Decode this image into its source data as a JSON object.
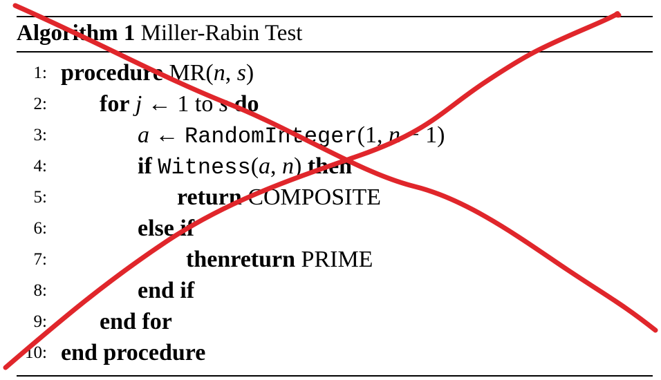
{
  "caption": {
    "label": "Algorithm 1",
    "title": "Miller-Rabin Test"
  },
  "lines": [
    {
      "num": "1:",
      "parts": [
        [
          "kw",
          "procedure"
        ],
        [
          "t",
          " MR("
        ],
        [
          "m",
          "n"
        ],
        [
          "t",
          ", "
        ],
        [
          "m",
          "s"
        ],
        [
          "t",
          ")"
        ]
      ]
    },
    {
      "num": "2:",
      "parts": [
        [
          "kw",
          "for"
        ],
        [
          "t",
          " "
        ],
        [
          "m",
          "j"
        ],
        [
          "t",
          " ← 1 to "
        ],
        [
          "m",
          "s"
        ],
        [
          "t",
          " "
        ],
        [
          "kw",
          "do"
        ]
      ]
    },
    {
      "num": "3:",
      "parts": [
        [
          "m",
          "a"
        ],
        [
          "t",
          " ← "
        ],
        [
          "tt",
          "RandomInteger"
        ],
        [
          "t",
          "(1, "
        ],
        [
          "m",
          "n"
        ],
        [
          "t",
          " − 1)"
        ]
      ]
    },
    {
      "num": "4:",
      "parts": [
        [
          "kw",
          "if"
        ],
        [
          "t",
          " "
        ],
        [
          "tt",
          "Witness"
        ],
        [
          "t",
          "("
        ],
        [
          "m",
          "a"
        ],
        [
          "t",
          ", "
        ],
        [
          "m",
          "n"
        ],
        [
          "t",
          ") "
        ],
        [
          "kw",
          "then"
        ]
      ]
    },
    {
      "num": "5:",
      "parts": [
        [
          "kw",
          "return"
        ],
        [
          "t",
          " COMPOSITE"
        ]
      ]
    },
    {
      "num": "6:",
      "parts": [
        [
          "kw",
          "else if"
        ]
      ]
    },
    {
      "num": "7:",
      "parts": [
        [
          "kw",
          "thenreturn"
        ],
        [
          "t",
          " PRIME"
        ]
      ]
    },
    {
      "num": "8:",
      "parts": [
        [
          "kw",
          "end if"
        ]
      ]
    },
    {
      "num": "9:",
      "parts": [
        [
          "kw",
          "end for"
        ]
      ]
    },
    {
      "num": "10:",
      "parts": [
        [
          "kw",
          "end procedure"
        ]
      ]
    }
  ],
  "annotation": {
    "stroke_color": "#e0262b"
  }
}
